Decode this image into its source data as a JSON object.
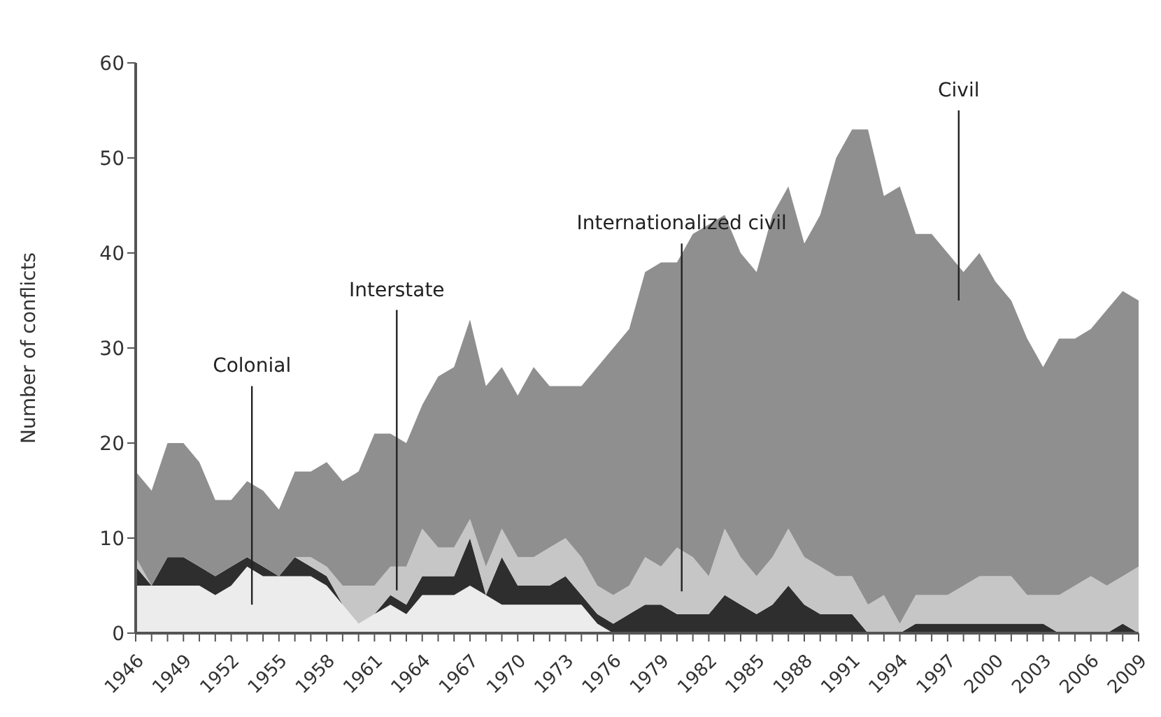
{
  "chart_data": {
    "type": "area",
    "stacked": true,
    "ylabel": "Number of conflicts",
    "x": [
      1946,
      1947,
      1948,
      1949,
      1950,
      1951,
      1952,
      1953,
      1954,
      1955,
      1956,
      1957,
      1958,
      1959,
      1960,
      1961,
      1962,
      1963,
      1964,
      1965,
      1966,
      1967,
      1968,
      1969,
      1970,
      1971,
      1972,
      1973,
      1974,
      1975,
      1976,
      1977,
      1978,
      1979,
      1980,
      1981,
      1982,
      1983,
      1984,
      1985,
      1986,
      1987,
      1988,
      1989,
      1990,
      1991,
      1992,
      1993,
      1994,
      1995,
      1996,
      1997,
      1998,
      1999,
      2000,
      2001,
      2002,
      2003,
      2004,
      2005,
      2006,
      2007,
      2008,
      2009
    ],
    "xlim": [
      1946,
      2009
    ],
    "xticks": [
      1946,
      {
        "value": 1947,
        "label": null
      },
      {
        "value": 1948,
        "label": null
      },
      1949,
      {
        "value": 1950,
        "label": null
      },
      {
        "value": 1951,
        "label": null
      },
      1952,
      {
        "value": 1953,
        "label": null
      },
      {
        "value": 1954,
        "label": null
      },
      1955,
      {
        "value": 1956,
        "label": null
      },
      {
        "value": 1957,
        "label": null
      },
      1958,
      {
        "value": 1959,
        "label": null
      },
      {
        "value": 1960,
        "label": null
      },
      1961,
      {
        "value": 1962,
        "label": null
      },
      {
        "value": 1963,
        "label": null
      },
      1964,
      {
        "value": 1965,
        "label": null
      },
      {
        "value": 1966,
        "label": null
      },
      1967,
      {
        "value": 1968,
        "label": null
      },
      {
        "value": 1969,
        "label": null
      },
      1970,
      {
        "value": 1971,
        "label": null
      },
      {
        "value": 1972,
        "label": null
      },
      1973,
      {
        "value": 1974,
        "label": null
      },
      {
        "value": 1975,
        "label": null
      },
      1976,
      {
        "value": 1977,
        "label": null
      },
      {
        "value": 1978,
        "label": null
      },
      1979,
      {
        "value": 1980,
        "label": null
      },
      {
        "value": 1981,
        "label": null
      },
      1982,
      {
        "value": 1983,
        "label": null
      },
      {
        "value": 1984,
        "label": null
      },
      1985,
      {
        "value": 1986,
        "label": null
      },
      {
        "value": 1987,
        "label": null
      },
      1988,
      {
        "value": 1989,
        "label": null
      },
      {
        "value": 1990,
        "label": null
      },
      1991,
      {
        "value": 1992,
        "label": null
      },
      {
        "value": 1993,
        "label": null
      },
      1994,
      {
        "value": 1995,
        "label": null
      },
      {
        "value": 1996,
        "label": null
      },
      1997,
      {
        "value": 1998,
        "label": null
      },
      {
        "value": 1999,
        "label": null
      },
      2000,
      {
        "value": 2001,
        "label": null
      },
      {
        "value": 2002,
        "label": null
      },
      2003,
      {
        "value": 2004,
        "label": null
      },
      {
        "value": 2005,
        "label": null
      },
      2006,
      {
        "value": 2007,
        "label": null
      },
      {
        "value": 2008,
        "label": null
      },
      2009
    ],
    "ylim": [
      0,
      60
    ],
    "yticks": [
      0,
      10,
      20,
      30,
      40,
      50,
      60
    ],
    "series": [
      {
        "name": "Colonial",
        "color": "#ececec",
        "values": [
          5,
          5,
          5,
          5,
          5,
          4,
          5,
          7,
          6,
          6,
          6,
          6,
          5,
          3,
          1,
          2,
          3,
          2,
          4,
          4,
          4,
          5,
          4,
          3,
          3,
          3,
          3,
          3,
          3,
          1,
          0,
          0,
          0,
          0,
          0,
          0,
          0,
          0,
          0,
          0,
          0,
          0,
          0,
          0,
          0,
          0,
          0,
          0,
          0,
          0,
          0,
          0,
          0,
          0,
          0,
          0,
          0,
          0,
          0,
          0,
          0,
          0,
          0,
          0
        ]
      },
      {
        "name": "Interstate",
        "color": "#2e2e2e",
        "values": [
          2,
          0,
          3,
          3,
          2,
          2,
          2,
          1,
          1,
          0,
          2,
          1,
          1,
          0,
          0,
          0,
          1,
          1,
          2,
          2,
          2,
          5,
          0,
          5,
          2,
          2,
          2,
          3,
          1,
          1,
          1,
          2,
          3,
          3,
          2,
          2,
          2,
          4,
          3,
          2,
          3,
          5,
          3,
          2,
          2,
          2,
          0,
          0,
          0,
          1,
          1,
          1,
          1,
          1,
          1,
          1,
          1,
          1,
          0,
          0,
          0,
          0,
          1,
          0
        ]
      },
      {
        "name": "Internationalized civil",
        "color": "#c6c6c6",
        "values": [
          1,
          0,
          0,
          0,
          0,
          0,
          0,
          0,
          0,
          0,
          0,
          1,
          1,
          2,
          4,
          3,
          3,
          4,
          5,
          3,
          3,
          2,
          3,
          3,
          3,
          3,
          4,
          4,
          4,
          3,
          3,
          3,
          5,
          4,
          7,
          6,
          4,
          7,
          5,
          4,
          5,
          6,
          5,
          5,
          4,
          4,
          3,
          4,
          1,
          3,
          3,
          3,
          4,
          5,
          5,
          5,
          3,
          3,
          4,
          5,
          6,
          5,
          5,
          7
        ]
      },
      {
        "name": "Civil",
        "color": "#8f8f8f",
        "values": [
          9,
          10,
          12,
          12,
          11,
          8,
          7,
          8,
          8,
          7,
          9,
          9,
          11,
          11,
          12,
          16,
          14,
          13,
          13,
          18,
          19,
          21,
          19,
          17,
          17,
          20,
          17,
          16,
          18,
          23,
          26,
          27,
          30,
          32,
          30,
          34,
          37,
          33,
          32,
          32,
          36,
          36,
          33,
          37,
          44,
          47,
          50,
          42,
          46,
          38,
          38,
          36,
          33,
          34,
          31,
          29,
          27,
          24,
          27,
          26,
          26,
          29,
          30,
          28
        ]
      }
    ]
  }
}
